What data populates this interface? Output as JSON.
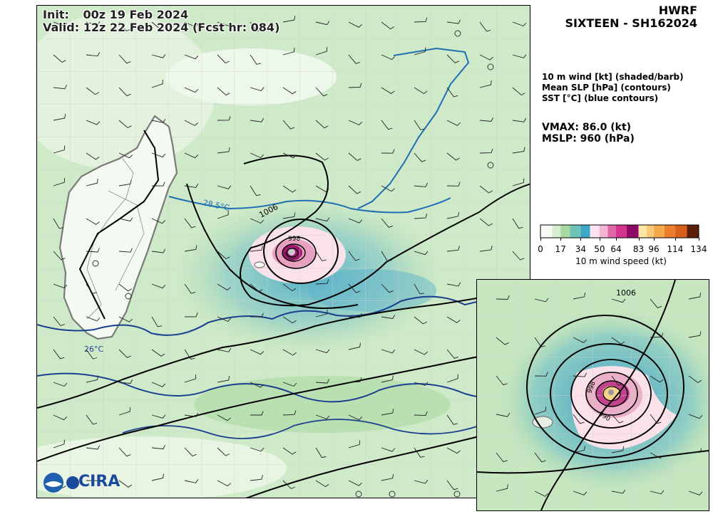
{
  "header": {
    "init_label": "Init:",
    "init_value": "00z 19 Feb 2024",
    "valid_label": "Valid:",
    "valid_value": "12z 22 Feb 2024 (Fcst hr: 084)",
    "model": "HWRF",
    "storm": "SIXTEEN - SH162024"
  },
  "legend": {
    "line1": "10 m wind [kt] (shaded/barb)",
    "line2": "Mean SLP [hPa] (contours)",
    "line3": "SST [°C] (blue contours)"
  },
  "stats": {
    "vmax": "VMAX:  86.0 (kt)",
    "mslp": "MSLP:  960 (hPa)"
  },
  "colorbar": {
    "label": "10 m wind speed (kt)",
    "ticks": [
      "0",
      "17",
      "34",
      "50",
      "64",
      "83",
      "96",
      "114",
      "134"
    ],
    "tick_values": [
      0,
      17,
      34,
      50,
      64,
      83,
      96,
      114,
      134
    ],
    "colors": [
      "#f7fbf5",
      "#a9d9a3",
      "#3da6c9",
      "#fde3ef",
      "#d6338f",
      "#8e0a68",
      "#fbe6a6",
      "#f5a94a",
      "#d8601a",
      "#5a1e0b"
    ]
  },
  "map_labels": {
    "sst_285": "28.5°C",
    "sst_26": "26°C",
    "slp_1006": "1006",
    "slp_998": "998",
    "inset_1006": "1006",
    "inset_998": "998",
    "inset_990": "990"
  },
  "logo": {
    "text": "CIRA"
  },
  "colors": {
    "land_outline": "#7a7a7a",
    "sst_contour": "#1f6fb5",
    "sst_contour_dark": "#1a3f8f",
    "slp_contour": "#000000"
  },
  "chart_data": {
    "type": "heatmap",
    "title": "HWRF SIXTEEN - SH162024",
    "fields": [
      "10 m wind [kt] (shaded/barb)",
      "Mean SLP [hPa] (contours)",
      "SST [°C] (blue contours)"
    ],
    "vmax_kt": 86.0,
    "mslp_hpa": 960,
    "colorbar_range": [
      0,
      134
    ],
    "colorbar_ticks": [
      0,
      17,
      34,
      50,
      64,
      83,
      96,
      114,
      134
    ],
    "labeled_contours": {
      "sst_c": [
        28.5,
        26
      ],
      "slp_hpa": [
        1006,
        998,
        990
      ]
    }
  }
}
